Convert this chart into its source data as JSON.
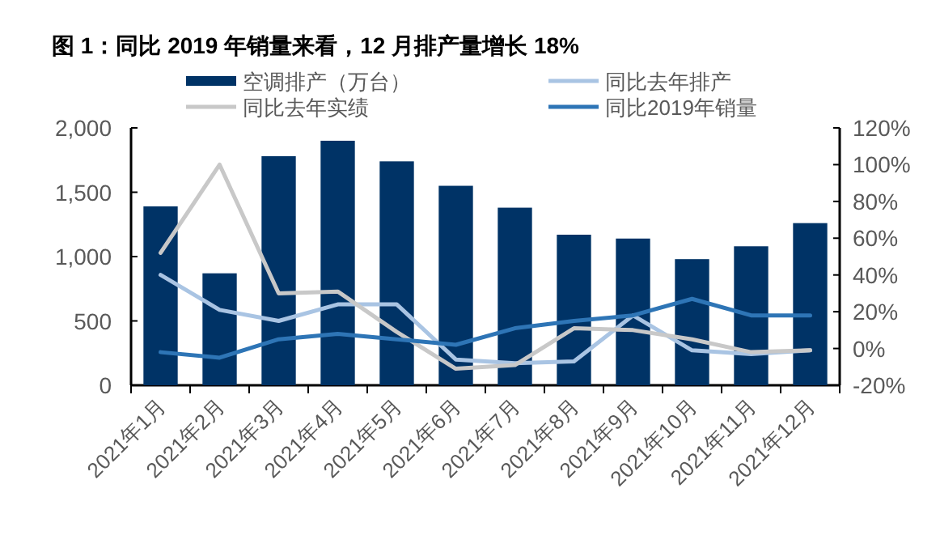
{
  "chart_data": {
    "type": "bar",
    "title": "图 1：同比 2019 年销量来看，12 月排产量增长 18%",
    "categories": [
      "2021年1月",
      "2021年2月",
      "2021年3月",
      "2021年4月",
      "2021年5月",
      "2021年6月",
      "2021年7月",
      "2021年8月",
      "2021年9月",
      "2021年10月",
      "2021年11月",
      "2021年12月"
    ],
    "series": [
      {
        "name": "空调排产（万台）",
        "color": "#003366",
        "values": [
          1390,
          870,
          1780,
          1900,
          1740,
          1550,
          1380,
          1170,
          1140,
          980,
          1080,
          1260
        ]
      },
      {
        "name": "同比去年排产",
        "type": "line",
        "axis": "y2",
        "color": "#a9c4e3",
        "values": [
          40,
          21,
          15,
          24,
          24,
          -6,
          -8,
          -7,
          18,
          -1,
          -3,
          -1
        ]
      },
      {
        "name": "同比去年实绩",
        "type": "line",
        "axis": "y2",
        "color": "#c8c8c8",
        "values": [
          52,
          100,
          30,
          31,
          9,
          -11,
          -9,
          11,
          10,
          5,
          -2,
          -1
        ]
      },
      {
        "name": "同比2019年销量",
        "type": "line",
        "axis": "y2",
        "color": "#2e75b6",
        "values": [
          -2,
          -5,
          5,
          8,
          5,
          2,
          11,
          15,
          18,
          27,
          18,
          18
        ]
      }
    ],
    "ylim": [
      0,
      2000
    ],
    "yticks": [
      0,
      500,
      {
        "value": 1000,
        "label": "1,000"
      },
      {
        "value": 1500,
        "label": "1,500"
      },
      {
        "value": 2000,
        "label": "2,000"
      }
    ],
    "y2lim": [
      -20,
      120
    ],
    "y2ticks": [
      {
        "value": -20,
        "label": "-20%"
      },
      {
        "value": 0,
        "label": "0%"
      },
      {
        "value": 20,
        "label": "20%"
      },
      {
        "value": 40,
        "label": "40%"
      },
      {
        "value": 60,
        "label": "60%"
      },
      {
        "value": 80,
        "label": "80%"
      },
      {
        "value": 100,
        "label": "100%"
      },
      {
        "value": 120,
        "label": "120%"
      }
    ],
    "legend": "top",
    "grid": false
  }
}
